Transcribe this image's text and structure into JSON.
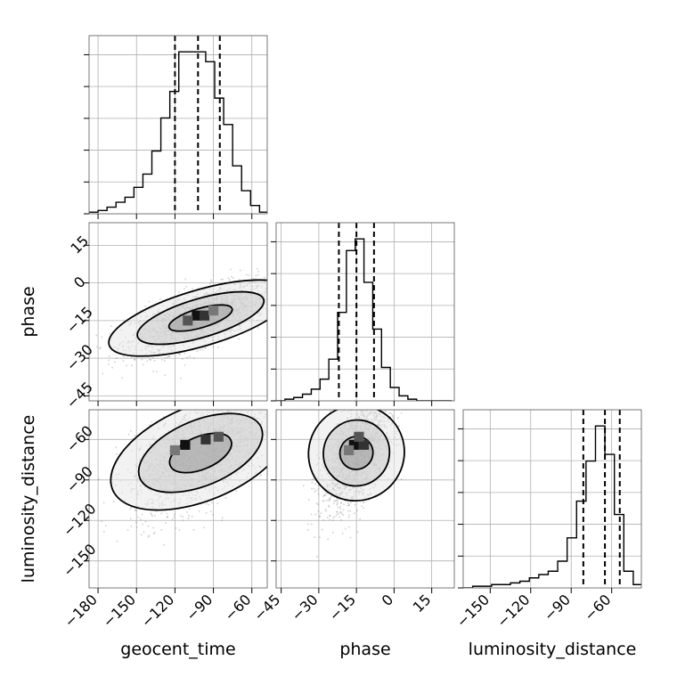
{
  "chart_data": {
    "type": "corner",
    "parameters": [
      "geocent_time",
      "phase",
      "luminosity_distance"
    ],
    "axis_ranges": {
      "geocent_time": [
        -187,
        -48
      ],
      "phase": [
        -47,
        24
      ],
      "luminosity_distance": [
        -170,
        -38
      ]
    },
    "ticks": {
      "geocent_time": [
        -180,
        -150,
        -120,
        -90,
        -60
      ],
      "phase": [
        -45,
        -30,
        -15,
        0,
        15
      ],
      "luminosity_distance": [
        -150,
        -120,
        -90,
        -60
      ]
    },
    "tick_labels": {
      "geocent_time": [
        "−180",
        "−150",
        "−120",
        "−90",
        "−60"
      ],
      "phase": [
        "−45",
        "−30",
        "−15",
        "0",
        "15"
      ],
      "luminosity_distance": [
        "−150",
        "−120",
        "−90",
        "−60"
      ]
    },
    "axis_labels": {
      "geocent_time": "geocent_time",
      "phase": "phase",
      "luminosity_distance": "luminosity_distance"
    },
    "grid": true,
    "histograms": [
      {
        "parameter": "geocent_time",
        "bin_edges": [
          -187,
          -180,
          -173,
          -166,
          -159,
          -152,
          -145,
          -138,
          -131,
          -124,
          -117,
          -110,
          -103,
          -96,
          -89,
          -82,
          -75,
          -68,
          -61,
          -54,
          -47
        ],
        "counts": [
          1,
          2,
          4,
          7,
          10,
          16,
          24,
          38,
          58,
          74,
          98,
          98,
          98,
          92,
          70,
          54,
          29,
          14,
          5,
          1
        ],
        "quantiles": [
          -120,
          -102,
          -85
        ]
      },
      {
        "parameter": "phase",
        "bin_edges": [
          -47,
          -43.5,
          -40,
          -36.5,
          -33,
          -29.5,
          -26,
          -22.5,
          -19,
          -15.5,
          -12,
          -8.5,
          -5,
          -1.5,
          2,
          5.5,
          9,
          12.5,
          16,
          19.5,
          23
        ],
        "counts": [
          0,
          1,
          2,
          4,
          7,
          13,
          25,
          53,
          90,
          97,
          71,
          43,
          20,
          8,
          3,
          1,
          0,
          0,
          0,
          0
        ],
        "quantiles": [
          -22,
          -15,
          -8
        ]
      },
      {
        "parameter": "luminosity_distance",
        "bin_edges": [
          -170,
          -163,
          -156,
          -149,
          -142,
          -135,
          -128,
          -121,
          -114,
          -107,
          -100,
          -93,
          -86,
          -79,
          -72,
          -65,
          -58,
          -51,
          -44,
          -37
        ],
        "counts": [
          0,
          1,
          1,
          2,
          2,
          3,
          4,
          6,
          8,
          10,
          16,
          30,
          52,
          76,
          97,
          80,
          44,
          10,
          2
        ],
        "quantiles": [
          -81,
          -65,
          -54
        ]
      }
    ],
    "contour_levels": [
      0.39,
      0.86,
      0.99
    ],
    "joint_panels": [
      {
        "x": "geocent_time",
        "y": "phase",
        "mean": [
          -100,
          -14
        ],
        "std": [
          27,
          7
        ],
        "correlation": 0.65,
        "peak_cells": [
          [
            -103,
            -13
          ],
          [
            -97,
            -13
          ],
          [
            -110,
            -15
          ],
          [
            -90,
            -11
          ]
        ]
      },
      {
        "x": "geocent_time",
        "y": "luminosity_distance",
        "mean": [
          -100,
          -70
        ],
        "std": [
          27,
          22
        ],
        "correlation": 0.55,
        "peak_cells": [
          [
            -112,
            -64
          ],
          [
            -96,
            -60
          ],
          [
            -86,
            -58
          ],
          [
            -120,
            -68
          ]
        ]
      },
      {
        "x": "phase",
        "y": "luminosity_distance",
        "mean": [
          -15,
          -70
        ],
        "std": [
          7,
          22
        ],
        "correlation": 0.6,
        "peak_cells": [
          [
            -16,
            -64
          ],
          [
            -12,
            -64
          ],
          [
            -14,
            -58
          ],
          [
            -18,
            -68
          ]
        ]
      }
    ]
  }
}
